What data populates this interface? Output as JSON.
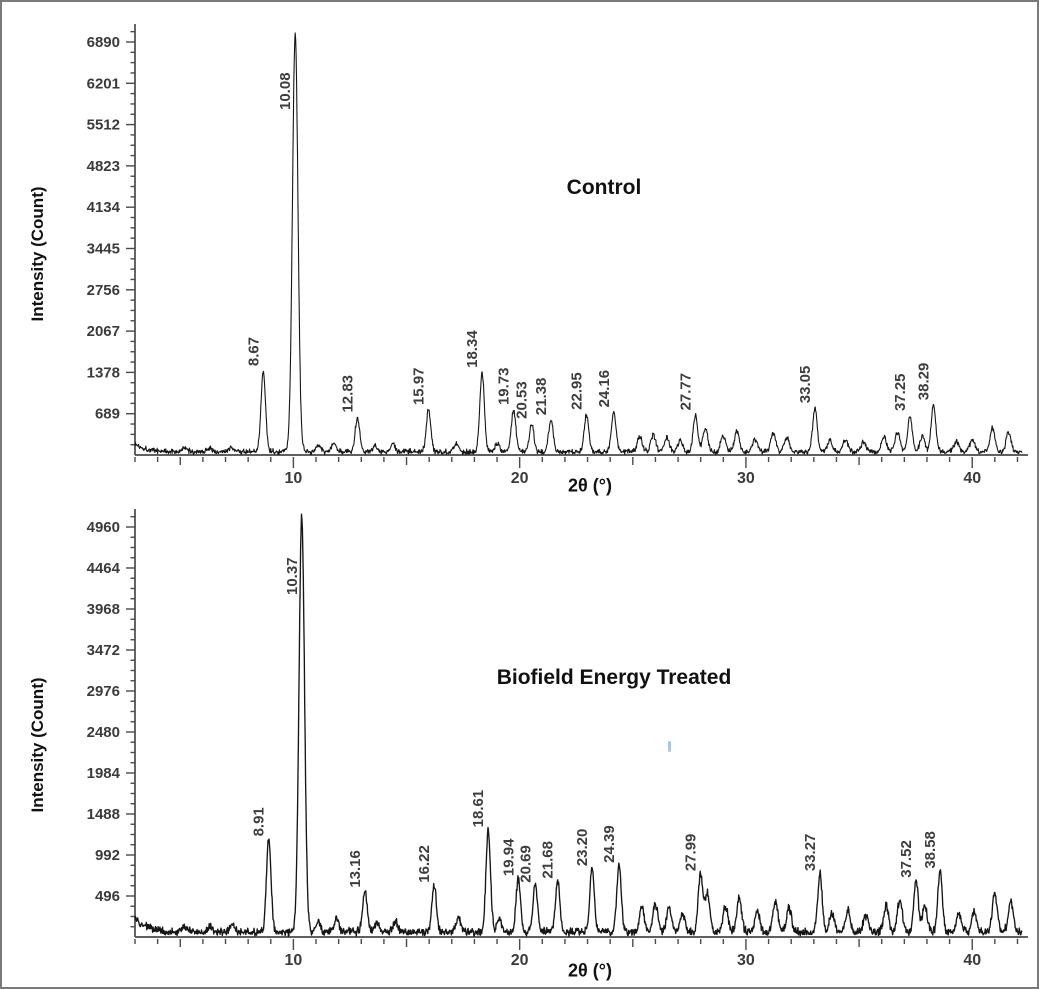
{
  "figure": {
    "background": "#ffffff",
    "border_color": "#7a7a7a",
    "trace_color": "#161616",
    "axis_color": "#4a4a4a",
    "tick_text_color": "#3b3b3b",
    "peak_label_color": "#3d3d3d",
    "stray_mark_color": "#85b4e6"
  },
  "chart_data": [
    {
      "type": "line",
      "title": "Control",
      "xlabel": "2θ (°)",
      "ylabel": "Intensity (Count)",
      "xlim": [
        3,
        42.2
      ],
      "x_major_ticks": [
        10,
        20,
        30,
        40
      ],
      "x_mid_step": 5,
      "x_minor_step": 1,
      "ytick_values": [
        689,
        1378,
        2067,
        2756,
        3445,
        4134,
        4823,
        5512,
        6201,
        6890
      ],
      "ymax": 7090,
      "grid": false,
      "legend": "none",
      "baseline": 55,
      "noise": 55,
      "left_decay": 130,
      "labeled_peaks": [
        {
          "label": "8.67",
          "x": 8.67,
          "y": 1350
        },
        {
          "label": "10.08",
          "x": 10.08,
          "y": 6980
        },
        {
          "label": "12.83",
          "x": 12.83,
          "y": 575
        },
        {
          "label": "15.97",
          "x": 15.97,
          "y": 700
        },
        {
          "label": "18.34",
          "x": 18.34,
          "y": 1320
        },
        {
          "label": "19.73",
          "x": 19.73,
          "y": 700
        },
        {
          "label": "20.53",
          "x": 20.53,
          "y": 470
        },
        {
          "label": "21.38",
          "x": 21.38,
          "y": 530
        },
        {
          "label": "22.95",
          "x": 22.95,
          "y": 620
        },
        {
          "label": "24.16",
          "x": 24.16,
          "y": 660
        },
        {
          "label": "27.77",
          "x": 27.77,
          "y": 610
        },
        {
          "label": "33.05",
          "x": 33.05,
          "y": 730
        },
        {
          "label": "37.25",
          "x": 37.25,
          "y": 600
        },
        {
          "label": "38.29",
          "x": 38.29,
          "y": 780
        }
      ],
      "minor_peaks": [
        [
          5.2,
          55
        ],
        [
          6.3,
          60
        ],
        [
          7.3,
          70
        ],
        [
          11.1,
          100
        ],
        [
          11.8,
          130
        ],
        [
          13.6,
          90
        ],
        [
          14.4,
          110
        ],
        [
          17.2,
          140
        ],
        [
          19.0,
          130
        ],
        [
          25.3,
          250
        ],
        [
          25.9,
          280
        ],
        [
          26.5,
          240
        ],
        [
          27.1,
          190
        ],
        [
          28.2,
          390
        ],
        [
          29.0,
          260
        ],
        [
          29.6,
          340
        ],
        [
          30.4,
          200
        ],
        [
          31.2,
          310
        ],
        [
          31.8,
          240
        ],
        [
          33.7,
          180
        ],
        [
          34.4,
          210
        ],
        [
          35.2,
          160
        ],
        [
          36.1,
          260
        ],
        [
          36.7,
          330
        ],
        [
          37.8,
          260
        ],
        [
          39.3,
          170
        ],
        [
          40.0,
          200
        ],
        [
          40.9,
          390
        ],
        [
          41.6,
          310
        ]
      ]
    },
    {
      "type": "line",
      "title": "Biofield Energy Treated",
      "xlabel": "2θ (°)",
      "ylabel": "Intensity (Count)",
      "xlim": [
        3,
        42.2
      ],
      "x_major_ticks": [
        10,
        20,
        30,
        40
      ],
      "x_mid_step": 5,
      "x_minor_step": 1,
      "ytick_values": [
        496,
        992,
        1488,
        1984,
        2480,
        2976,
        3472,
        3968,
        4464,
        4960
      ],
      "ymax": 5105,
      "grid": false,
      "legend": "none",
      "baseline": 60,
      "noise": 60,
      "left_decay": 170,
      "labeled_peaks": [
        {
          "label": "8.91",
          "x": 8.91,
          "y": 1120
        },
        {
          "label": "10.37",
          "x": 10.37,
          "y": 5030
        },
        {
          "label": "13.16",
          "x": 13.16,
          "y": 500
        },
        {
          "label": "16.22",
          "x": 16.22,
          "y": 560
        },
        {
          "label": "18.61",
          "x": 18.61,
          "y": 1230
        },
        {
          "label": "19.94",
          "x": 19.94,
          "y": 640
        },
        {
          "label": "20.69",
          "x": 20.69,
          "y": 560
        },
        {
          "label": "21.68",
          "x": 21.68,
          "y": 610
        },
        {
          "label": "23.20",
          "x": 23.2,
          "y": 760
        },
        {
          "label": "24.39",
          "x": 24.39,
          "y": 800
        },
        {
          "label": "27.99",
          "x": 27.99,
          "y": 700
        },
        {
          "label": "33.27",
          "x": 33.27,
          "y": 700
        },
        {
          "label": "37.52",
          "x": 37.52,
          "y": 620
        },
        {
          "label": "38.58",
          "x": 38.58,
          "y": 730
        }
      ],
      "minor_peaks": [
        [
          5.2,
          65
        ],
        [
          6.3,
          70
        ],
        [
          7.3,
          85
        ],
        [
          11.1,
          120
        ],
        [
          11.9,
          150
        ],
        [
          13.7,
          110
        ],
        [
          14.5,
          130
        ],
        [
          17.3,
          170
        ],
        [
          19.1,
          160
        ],
        [
          25.4,
          300
        ],
        [
          26.0,
          340
        ],
        [
          26.6,
          290
        ],
        [
          27.2,
          230
        ],
        [
          28.3,
          460
        ],
        [
          29.1,
          310
        ],
        [
          29.7,
          410
        ],
        [
          30.5,
          250
        ],
        [
          31.3,
          370
        ],
        [
          31.9,
          290
        ],
        [
          33.8,
          220
        ],
        [
          34.5,
          260
        ],
        [
          35.3,
          200
        ],
        [
          36.2,
          310
        ],
        [
          36.8,
          390
        ],
        [
          37.9,
          310
        ],
        [
          39.4,
          210
        ],
        [
          40.1,
          240
        ],
        [
          41.0,
          460
        ],
        [
          41.7,
          370
        ]
      ]
    }
  ]
}
